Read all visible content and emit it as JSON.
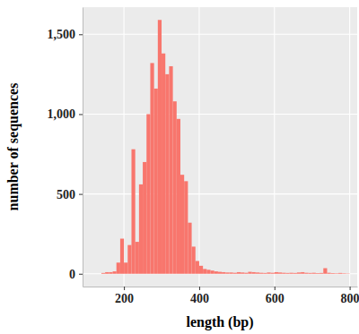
{
  "chart_data": {
    "type": "histogram",
    "xlabel": "length (bp)",
    "ylabel": "number of sequences",
    "bins": [
      140,
      150,
      160,
      170,
      180,
      190,
      200,
      210,
      220,
      230,
      240,
      250,
      260,
      270,
      280,
      290,
      300,
      310,
      320,
      330,
      340,
      350,
      360,
      370,
      380,
      390,
      400,
      410,
      420,
      430,
      440,
      450,
      460,
      470,
      480,
      490,
      500,
      510,
      520,
      530,
      540,
      550,
      560,
      570,
      580,
      590,
      600,
      610,
      620,
      630,
      640,
      650,
      660,
      670,
      680,
      690,
      700,
      710,
      720,
      730,
      740,
      750,
      760,
      770,
      780,
      790,
      800
    ],
    "values": [
      5,
      10,
      10,
      15,
      70,
      220,
      70,
      180,
      780,
      200,
      560,
      700,
      1000,
      1320,
      1160,
      1590,
      1380,
      1250,
      1300,
      1080,
      970,
      620,
      580,
      320,
      170,
      80,
      50,
      30,
      25,
      20,
      15,
      12,
      10,
      8,
      8,
      6,
      10,
      8,
      6,
      12,
      10,
      8,
      6,
      5,
      8,
      6,
      10,
      8,
      6,
      5,
      6,
      5,
      8,
      10,
      6,
      5,
      6,
      4,
      5,
      35,
      6,
      4,
      3,
      5,
      3,
      2
    ],
    "color": "#F8766D",
    "xlim": [
      90,
      820
    ],
    "ylim": [
      -80,
      1670
    ],
    "xticks": [
      200,
      400,
      600,
      800
    ],
    "yticks": [
      0,
      500,
      {
        "value": 1000,
        "label": "1,000"
      },
      {
        "value": 1500,
        "label": "1,500"
      }
    ],
    "grid": true
  }
}
